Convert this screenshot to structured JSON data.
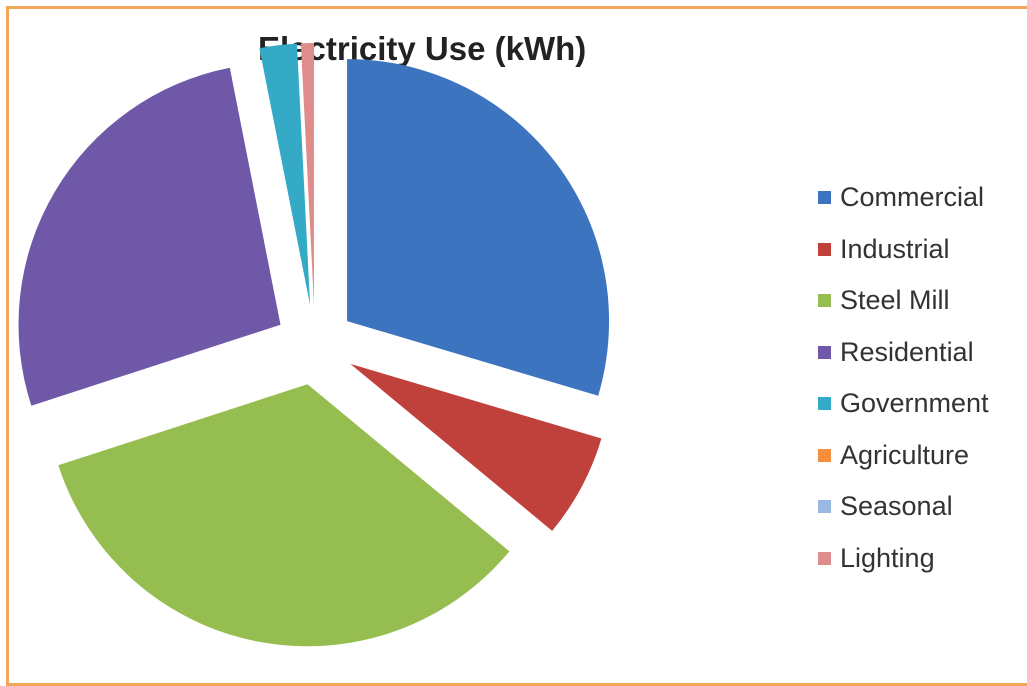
{
  "chart_data": {
    "type": "pie",
    "title": "Electricity Use (kWh)",
    "categories": [
      "Commercial",
      "Industrial",
      "Steel Mill",
      "Residential",
      "Government",
      "Agriculture",
      "Seasonal",
      "Lighting"
    ],
    "values": [
      29.6,
      6.4,
      34.0,
      26.9,
      2.3,
      0.0,
      0.0,
      0.8
    ],
    "unit": "%",
    "exploded": true,
    "colors": [
      "#3d74c0",
      "#c0403c",
      "#95bd4f",
      "#7058a8",
      "#34aac6",
      "#f58f3d",
      "#99b9e2",
      "#df8c8d"
    ],
    "legend_position": "right"
  }
}
